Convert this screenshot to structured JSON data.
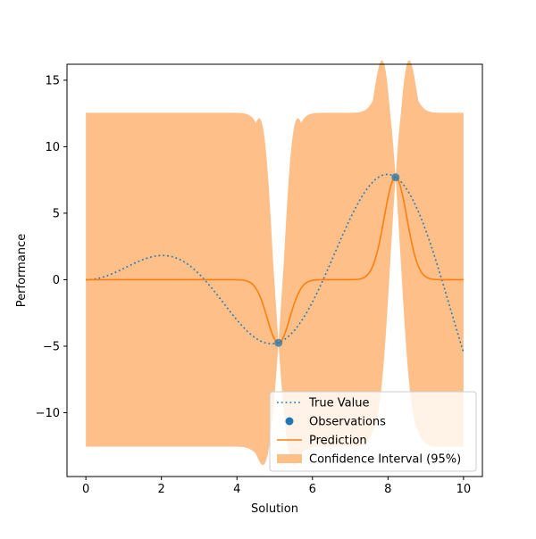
{
  "chart_data": {
    "type": "line",
    "title": "",
    "xlabel": "Solution",
    "ylabel": "Performance",
    "xlim": [
      -0.5,
      10.5
    ],
    "ylim": [
      -14.8,
      16.2
    ],
    "xticks": [
      0,
      2,
      4,
      6,
      8,
      10
    ],
    "yticks": [
      -10,
      -5,
      0,
      5,
      10,
      15
    ],
    "xtick_labels": [
      "0",
      "2",
      "4",
      "6",
      "8",
      "10"
    ],
    "ytick_labels": [
      "−10",
      "−5",
      "0",
      "5",
      "10",
      "15"
    ],
    "grid": false,
    "legend_position": "lower-right",
    "true_function": "x * sin(x)",
    "x_range": [
      0,
      10
    ],
    "observations": {
      "name": "Observations",
      "x": [
        5.1,
        8.2
      ],
      "y": [
        -4.75,
        7.7
      ]
    },
    "gp": {
      "prior_mean": 0,
      "prior_interval_halfwidth": 12.55,
      "length_scale": 0.3,
      "interval_peak": 14.8,
      "interval_min": -13.4
    },
    "series": [
      {
        "name": "True Value",
        "style": "dotted",
        "color": "#1f77b4"
      },
      {
        "name": "Observations",
        "style": "markers",
        "color": "#1f77b4"
      },
      {
        "name": "Prediction",
        "style": "solid",
        "color": "#ff7f0e"
      },
      {
        "name": "Confidence Interval (95%)",
        "style": "band",
        "color": "#ffbf89"
      }
    ]
  }
}
